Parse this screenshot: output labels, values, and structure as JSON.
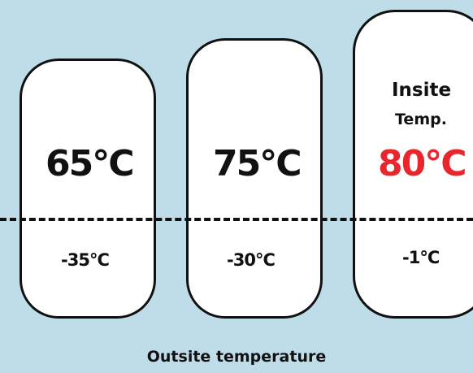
{
  "diagram": {
    "inside_label": [
      "Insite",
      "Temp."
    ],
    "footer_label": "Outsite temperature",
    "highlight_color": "#e8262d",
    "background_color": "#bfdde8",
    "columns": [
      {
        "inside": "65°C",
        "outside": "-35°C"
      },
      {
        "inside": "75°C",
        "outside": "-30°C"
      },
      {
        "inside": "80°C",
        "outside": "-1°C",
        "highlighted": true
      }
    ]
  }
}
